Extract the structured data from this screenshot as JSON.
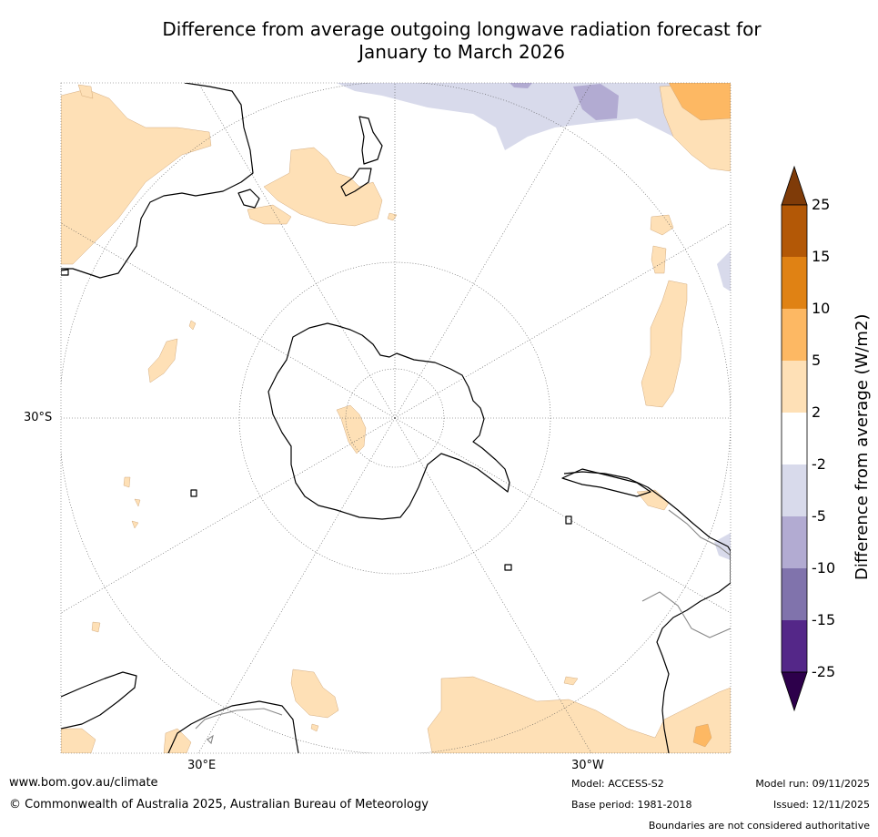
{
  "title": {
    "line1": "Difference from average outgoing longwave radiation forecast for",
    "line2": "January to March 2026"
  },
  "map": {
    "projection": "south-polar-stereographic",
    "lat_label": "30°S",
    "lon_labels": {
      "east": "30°E",
      "west": "30°W"
    }
  },
  "colorbar": {
    "title": "Difference from average (W/m2)",
    "ticks": [
      "25",
      "15",
      "10",
      "5",
      "2",
      "-2",
      "-5",
      "-10",
      "-15",
      "-25"
    ],
    "colors": {
      "above_max": "#7f3b08",
      "15_25": "#b35806",
      "10_15": "#e08214",
      "5_10": "#fdb863",
      "2_5": "#fee0b6",
      "neutral": "#ffffff",
      "m2_m5": "#d8daeb",
      "m5_m10": "#b2abd2",
      "m10_m15": "#8073ac",
      "m15_m25": "#542788",
      "below_min": "#2d004b"
    }
  },
  "footer": {
    "website": "www.bom.gov.au/climate",
    "copyright": "© Commonwealth of Australia 2025, Australian Bureau of Meteorology",
    "model": "Model: ACCESS-S2",
    "base_period": "Base period: 1981-2018",
    "model_run": "Model run: 09/11/2025",
    "issued": "Issued: 12/11/2025",
    "disclaimer": "Boundaries are not considered authoritative"
  }
}
